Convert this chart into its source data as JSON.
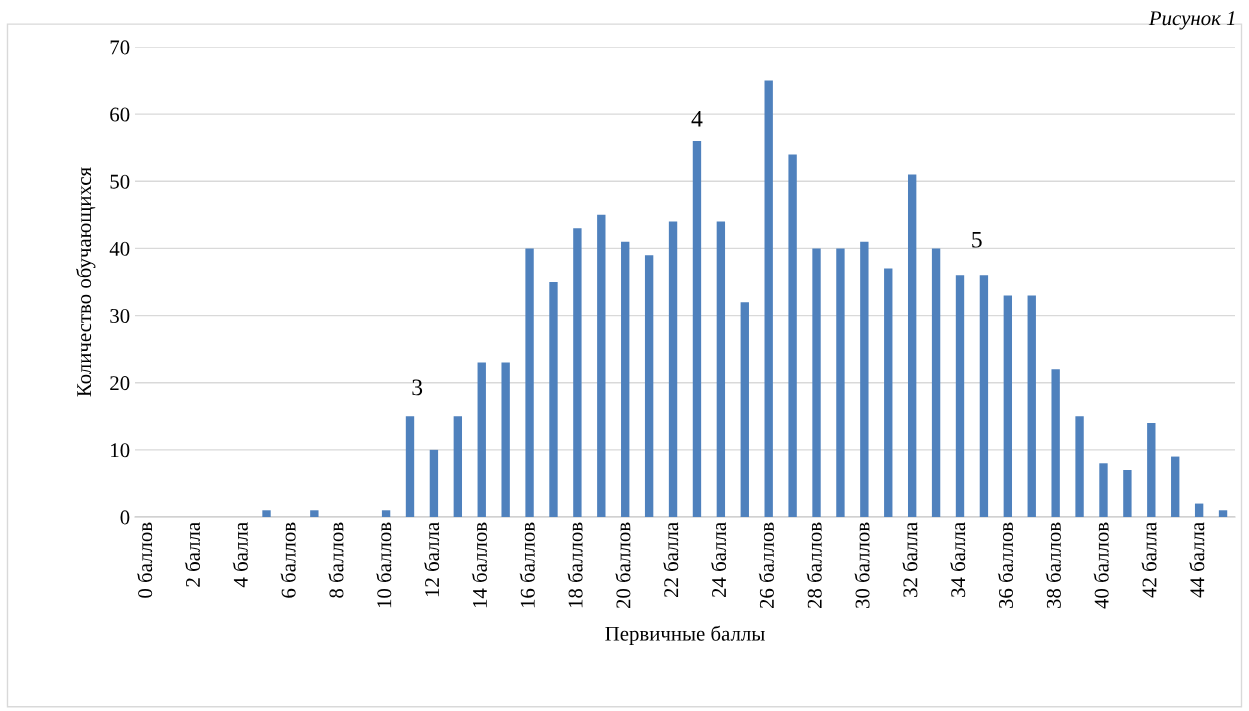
{
  "chart_data": {
    "type": "bar",
    "xlabel": "Первичные баллы",
    "ylabel": "Количество обучающихся",
    "categories": [
      "0 баллов",
      null,
      "2 балла",
      null,
      "4 балла",
      null,
      "6 баллов",
      null,
      "8 баллов",
      null,
      "10 баллов",
      null,
      "12 балла",
      null,
      "14 баллов",
      null,
      "16 баллов",
      null,
      "18 баллов",
      null,
      "20 баллов",
      null,
      "22 балла",
      null,
      "24 балла",
      null,
      "26 баллов",
      null,
      "28 баллов",
      null,
      "30 баллов",
      null,
      "32 балла",
      null,
      "34 балла",
      null,
      "36 баллов",
      null,
      "38 баллов",
      null,
      "40 баллов",
      null,
      "42 балла",
      null,
      "44 балла",
      null
    ],
    "values": [
      0,
      0,
      0,
      0,
      0,
      1,
      0,
      1,
      0,
      0,
      1,
      15,
      10,
      15,
      23,
      23,
      40,
      35,
      43,
      45,
      41,
      39,
      44,
      56,
      44,
      32,
      65,
      54,
      40,
      40,
      41,
      37,
      51,
      40,
      36,
      36,
      33,
      33,
      22,
      15,
      8,
      7,
      14,
      9,
      2,
      1
    ],
    "color": "#4f81bd",
    "ylim": [
      0,
      70
    ],
    "yticks": [
      0,
      10,
      20,
      30,
      40,
      50,
      60,
      70
    ],
    "grid": "y",
    "annotations": [
      "Рисунок 1",
      "3",
      "4",
      "5"
    ]
  }
}
